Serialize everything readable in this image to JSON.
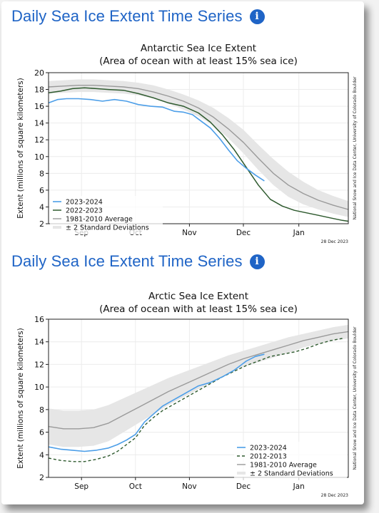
{
  "sections": [
    {
      "heading": "Daily Sea Ice Extent Time Series",
      "info_icon": "info-circle-icon"
    },
    {
      "heading": "Daily Sea Ice Extent Time Series",
      "info_icon": "info-circle-icon"
    }
  ],
  "colors": {
    "heading": "#1f64c6",
    "current": "#4c9ee8",
    "previous": "#2e5a2e",
    "average": "#9a9a9a",
    "std_band": "#e6e6e6"
  },
  "chart_data": [
    {
      "type": "line",
      "title": "Antarctic Sea Ice Extent",
      "subtitle": "(Area of ocean with at least 15% sea ice)",
      "ylabel": "Extent (millions of square kilometers)",
      "xlabel": "",
      "ylim": [
        2,
        20
      ],
      "yticks": [
        2,
        4,
        6,
        8,
        10,
        12,
        14,
        16,
        18,
        20
      ],
      "xlim": [
        0,
        1
      ],
      "xticks": [
        {
          "label": "Sep",
          "x": 0.11
        },
        {
          "label": "Oct",
          "x": 0.29
        },
        {
          "label": "Nov",
          "x": 0.47
        },
        {
          "label": "Dec",
          "x": 0.65
        },
        {
          "label": "Jan",
          "x": 0.835
        }
      ],
      "grid": true,
      "legend_position": "bottom-left",
      "credit": "National Snow and Ice Data Center, University of Colorado Boulder",
      "date_stamp": "28 Dec 2023",
      "series": [
        {
          "name": "2023-2024",
          "style": "current",
          "x": [
            0,
            0.03,
            0.06,
            0.1,
            0.14,
            0.18,
            0.22,
            0.26,
            0.3,
            0.34,
            0.38,
            0.42,
            0.45,
            0.48,
            0.51,
            0.54,
            0.57,
            0.6,
            0.63,
            0.66,
            0.69,
            0.72
          ],
          "y": [
            16.4,
            16.8,
            16.9,
            16.9,
            16.8,
            16.6,
            16.8,
            16.6,
            16.2,
            16.0,
            15.9,
            15.4,
            15.3,
            15.0,
            14.2,
            13.4,
            12.2,
            10.8,
            9.5,
            8.6,
            7.8,
            7.1
          ]
        },
        {
          "name": "2022-2023",
          "style": "previous",
          "x": [
            0,
            0.04,
            0.08,
            0.12,
            0.16,
            0.2,
            0.25,
            0.3,
            0.35,
            0.4,
            0.45,
            0.5,
            0.54,
            0.58,
            0.62,
            0.66,
            0.7,
            0.74,
            0.78,
            0.82,
            0.86,
            0.9,
            0.94,
            0.98,
            1.0
          ],
          "y": [
            17.6,
            17.8,
            18.1,
            18.2,
            18.1,
            18.0,
            17.9,
            17.5,
            17.0,
            16.4,
            16.0,
            15.2,
            14.1,
            12.6,
            10.8,
            8.7,
            6.6,
            4.9,
            4.1,
            3.6,
            3.3,
            3.0,
            2.7,
            2.4,
            2.3
          ]
        },
        {
          "name": "1981-2010 Average",
          "style": "average",
          "x": [
            0,
            0.05,
            0.1,
            0.15,
            0.2,
            0.25,
            0.3,
            0.35,
            0.4,
            0.45,
            0.5,
            0.55,
            0.6,
            0.65,
            0.7,
            0.75,
            0.8,
            0.85,
            0.9,
            0.95,
            1.0
          ],
          "y": [
            18.3,
            18.4,
            18.5,
            18.5,
            18.4,
            18.3,
            18.1,
            17.7,
            17.2,
            16.6,
            15.8,
            14.7,
            13.3,
            11.7,
            9.8,
            8.0,
            6.6,
            5.6,
            4.8,
            4.2,
            3.7
          ]
        },
        {
          "name": "± 2 Standard Deviations",
          "style": "band",
          "x": [
            0,
            0.05,
            0.1,
            0.15,
            0.2,
            0.25,
            0.3,
            0.35,
            0.4,
            0.45,
            0.5,
            0.55,
            0.6,
            0.65,
            0.7,
            0.75,
            0.8,
            0.85,
            0.9,
            0.95,
            1.0
          ],
          "upper": [
            19.0,
            19.1,
            19.2,
            19.2,
            19.1,
            19.0,
            18.8,
            18.5,
            18.0,
            17.4,
            16.7,
            15.8,
            14.6,
            13.2,
            11.4,
            9.7,
            8.2,
            7.0,
            6.0,
            5.3,
            4.7
          ],
          "lower": [
            17.5,
            17.6,
            17.7,
            17.7,
            17.6,
            17.5,
            17.3,
            16.9,
            16.3,
            15.6,
            14.8,
            13.7,
            12.2,
            10.4,
            8.4,
            6.6,
            5.2,
            4.3,
            3.7,
            3.2,
            2.8
          ]
        }
      ]
    },
    {
      "type": "line",
      "title": "Arctic Sea Ice Extent",
      "subtitle": "(Area of ocean with at least 15% sea ice)",
      "ylabel": "Extent (millions of square kilometers)",
      "xlabel": "",
      "ylim": [
        2,
        16
      ],
      "yticks": [
        2,
        4,
        6,
        8,
        10,
        12,
        14,
        16
      ],
      "xlim": [
        0,
        1
      ],
      "xticks": [
        {
          "label": "Sep",
          "x": 0.11
        },
        {
          "label": "Oct",
          "x": 0.29
        },
        {
          "label": "Nov",
          "x": 0.47
        },
        {
          "label": "Dec",
          "x": 0.65
        },
        {
          "label": "Jan",
          "x": 0.835
        }
      ],
      "grid": true,
      "legend_position": "bottom-right",
      "credit": "National Snow and Ice Data Center, University of Colorado Boulder",
      "date_stamp": "28 Dec 2023",
      "series": [
        {
          "name": "2023-2024",
          "style": "current",
          "x": [
            0,
            0.04,
            0.08,
            0.12,
            0.16,
            0.2,
            0.23,
            0.26,
            0.29,
            0.32,
            0.35,
            0.38,
            0.42,
            0.46,
            0.5,
            0.54,
            0.58,
            0.62,
            0.66,
            0.69,
            0.72
          ],
          "y": [
            4.7,
            4.5,
            4.4,
            4.3,
            4.4,
            4.6,
            4.9,
            5.3,
            5.8,
            6.9,
            7.6,
            8.3,
            8.9,
            9.5,
            10.1,
            10.4,
            10.9,
            11.5,
            12.3,
            12.7,
            12.9
          ]
        },
        {
          "name": "2012-2013",
          "style": "dashed",
          "x": [
            0,
            0.04,
            0.08,
            0.12,
            0.16,
            0.2,
            0.23,
            0.26,
            0.29,
            0.32,
            0.35,
            0.38,
            0.42,
            0.46,
            0.5,
            0.54,
            0.58,
            0.62,
            0.66,
            0.7,
            0.74,
            0.78,
            0.82,
            0.86,
            0.9,
            0.94,
            0.98
          ],
          "y": [
            3.7,
            3.5,
            3.4,
            3.4,
            3.6,
            3.9,
            4.3,
            4.9,
            5.5,
            6.6,
            7.3,
            7.9,
            8.5,
            9.1,
            9.7,
            10.3,
            10.9,
            11.4,
            11.9,
            12.3,
            12.7,
            12.9,
            13.1,
            13.4,
            13.8,
            14.1,
            14.3
          ]
        },
        {
          "name": "1981-2010 Average",
          "style": "average",
          "x": [
            0,
            0.05,
            0.1,
            0.15,
            0.2,
            0.25,
            0.3,
            0.35,
            0.4,
            0.45,
            0.5,
            0.55,
            0.6,
            0.65,
            0.7,
            0.75,
            0.8,
            0.85,
            0.9,
            0.95,
            1.0
          ],
          "y": [
            6.5,
            6.3,
            6.3,
            6.4,
            6.8,
            7.5,
            8.2,
            8.9,
            9.6,
            10.2,
            10.8,
            11.4,
            12.0,
            12.5,
            12.9,
            13.3,
            13.7,
            14.1,
            14.4,
            14.7,
            14.9
          ]
        },
        {
          "name": "± 2 Standard Deviations",
          "style": "band",
          "x": [
            0,
            0.05,
            0.1,
            0.15,
            0.2,
            0.25,
            0.3,
            0.35,
            0.4,
            0.45,
            0.5,
            0.55,
            0.6,
            0.65,
            0.7,
            0.75,
            0.8,
            0.85,
            0.9,
            0.95,
            1.0
          ],
          "upper": [
            8.1,
            7.9,
            7.9,
            8.0,
            8.4,
            9.0,
            9.6,
            10.2,
            10.8,
            11.3,
            11.8,
            12.3,
            12.8,
            13.2,
            13.6,
            14.0,
            14.4,
            14.7,
            15.0,
            15.3,
            15.5
          ],
          "lower": [
            4.9,
            4.7,
            4.7,
            4.8,
            5.2,
            6.0,
            6.8,
            7.6,
            8.4,
            9.1,
            9.8,
            10.5,
            11.2,
            11.8,
            12.2,
            12.6,
            13.0,
            13.5,
            13.8,
            14.1,
            14.3
          ]
        }
      ]
    }
  ]
}
